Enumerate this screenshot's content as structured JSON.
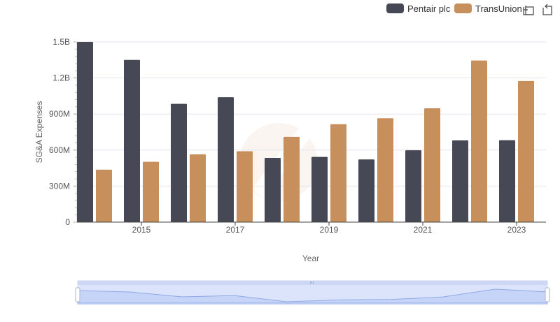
{
  "legend": {
    "items": [
      {
        "label": "Pentair plc",
        "color": "#464855"
      },
      {
        "label": "TransUnion",
        "color": "#c68f5b"
      }
    ]
  },
  "toolbar": {
    "icons": [
      "box-zoom-icon",
      "reset-zoom-icon"
    ]
  },
  "chart_data": {
    "type": "bar",
    "xlabel": "Year",
    "ylabel": "SG&A Expenses",
    "ylim": [
      0,
      1500000000
    ],
    "yticks": [
      {
        "value": 0,
        "label": "0"
      },
      {
        "value": 300000000,
        "label": "300M"
      },
      {
        "value": 600000000,
        "label": "600M"
      },
      {
        "value": 900000000,
        "label": "900M"
      },
      {
        "value": 1200000000,
        "label": "1.2B"
      },
      {
        "value": 1500000000,
        "label": "1.5B"
      }
    ],
    "categories": [
      2014,
      2015,
      2016,
      2017,
      2018,
      2019,
      2020,
      2021,
      2022,
      2023
    ],
    "xtick_labels": [
      "2015",
      "2017",
      "2019",
      "2021",
      "2023"
    ],
    "grid": true,
    "legend_position": "top-right",
    "series": [
      {
        "name": "Pentair plc",
        "color": "#464855",
        "values": [
          1500000000,
          1350000000,
          985000000,
          1040000000,
          535000000,
          543000000,
          522000000,
          598000000,
          680000000,
          682000000
        ]
      },
      {
        "name": "TransUnion",
        "color": "#c68f5b",
        "values": [
          437000000,
          502000000,
          564000000,
          590000000,
          710000000,
          815000000,
          865000000,
          948000000,
          1345000000,
          1175000000
        ]
      }
    ]
  }
}
